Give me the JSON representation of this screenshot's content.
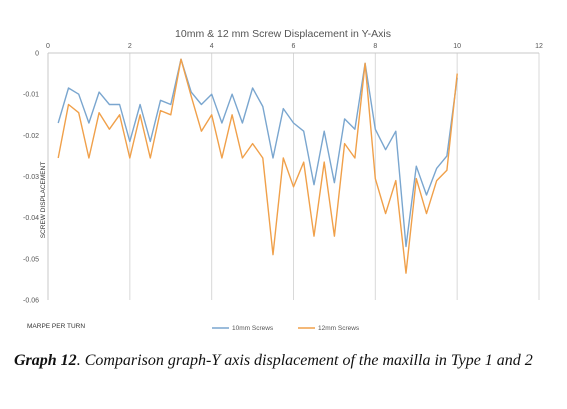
{
  "chart_data": {
    "type": "line",
    "title": "10mm & 12 mm Screw Displacement in Y-Axis",
    "xlabel": "MARPE PER TURN",
    "ylabel": "SCREW DISPLACEMENT",
    "xlim": [
      0,
      12
    ],
    "ylim": [
      -0.06,
      0
    ],
    "x_ticks": [
      "0",
      "2",
      "4",
      "6",
      "8",
      "10",
      "12"
    ],
    "y_ticks": [
      "0",
      "-0.01",
      "-0.02",
      "-0.03",
      "-0.04",
      "-0.05",
      "-0.06"
    ],
    "grid": "vertical",
    "legend_position": "bottom",
    "x": [
      0.25,
      0.5,
      0.75,
      1,
      1.25,
      1.5,
      1.75,
      2,
      2.25,
      2.5,
      2.75,
      3,
      3.25,
      3.5,
      3.75,
      4,
      4.25,
      4.5,
      4.75,
      5,
      5.25,
      5.5,
      5.75,
      6,
      6.25,
      6.5,
      6.75,
      7,
      7.25,
      7.5,
      7.75,
      8,
      8.25,
      8.5,
      8.75,
      9,
      9.25,
      9.5,
      9.75,
      10
    ],
    "series": [
      {
        "name": "10mm Screws",
        "color": "#7aa6cf",
        "values": [
          -0.017,
          -0.0085,
          -0.01,
          -0.017,
          -0.0095,
          -0.0125,
          -0.0125,
          -0.0215,
          -0.0125,
          -0.0215,
          -0.0115,
          -0.0125,
          -0.0015,
          -0.0095,
          -0.0125,
          -0.01,
          -0.017,
          -0.01,
          -0.017,
          -0.0085,
          -0.013,
          -0.0255,
          -0.0135,
          -0.017,
          -0.019,
          -0.032,
          -0.019,
          -0.0315,
          -0.016,
          -0.0185,
          -0.0025,
          -0.0185,
          -0.0235,
          -0.019,
          -0.047,
          -0.0275,
          -0.0345,
          -0.028,
          -0.025,
          -0.006
        ]
      },
      {
        "name": "12mm Screws",
        "color": "#f0a04a",
        "values": [
          -0.0255,
          -0.0125,
          -0.0145,
          -0.0255,
          -0.0145,
          -0.0185,
          -0.015,
          -0.0255,
          -0.015,
          -0.0255,
          -0.014,
          -0.015,
          -0.0015,
          -0.0105,
          -0.019,
          -0.015,
          -0.0255,
          -0.015,
          -0.0255,
          -0.022,
          -0.0255,
          -0.049,
          -0.0255,
          -0.0325,
          -0.0265,
          -0.0445,
          -0.0265,
          -0.0445,
          -0.022,
          -0.0255,
          -0.0025,
          -0.0305,
          -0.039,
          -0.031,
          -0.0535,
          -0.0305,
          -0.039,
          -0.031,
          -0.0285,
          -0.005
        ]
      }
    ]
  },
  "caption": {
    "label": "Graph 12",
    "text": ". Comparison graph-Y axis displacement of the maxilla in Type 1 and 2"
  }
}
